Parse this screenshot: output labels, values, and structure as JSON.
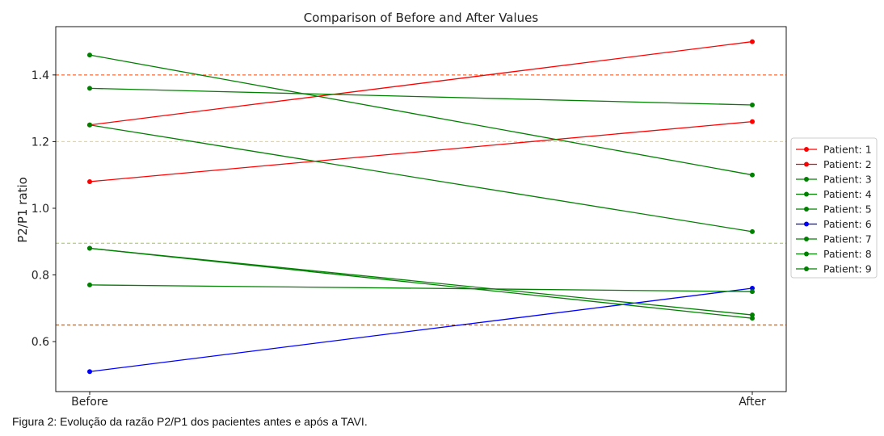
{
  "chart_data": {
    "type": "line",
    "title": "Comparison of Before and After Values",
    "xlabel": "",
    "ylabel": "P2/P1 ratio",
    "categories": [
      "Before",
      "After"
    ],
    "ylim": [
      0.45,
      1.545
    ],
    "yticks": [
      "0.6",
      "0.8",
      "1.0",
      "1.2",
      "1.4"
    ],
    "grid": false,
    "legend_position": "right",
    "series": [
      {
        "name": "Patient: 1",
        "values": [
          1.25,
          1.5
        ],
        "color": "#ff0000"
      },
      {
        "name": "Patient: 2",
        "values": [
          1.08,
          1.26
        ],
        "color": "#ff0000"
      },
      {
        "name": "Patient: 3",
        "values": [
          1.46,
          1.1
        ],
        "color": "#008000"
      },
      {
        "name": "Patient: 4",
        "values": [
          1.36,
          1.31
        ],
        "color": "#008000"
      },
      {
        "name": "Patient: 5",
        "values": [
          1.25,
          0.93
        ],
        "color": "#008000"
      },
      {
        "name": "Patient: 6",
        "values": [
          0.51,
          0.76
        ],
        "color": "#0000ff"
      },
      {
        "name": "Patient: 7",
        "values": [
          0.88,
          0.68
        ],
        "color": "#008000"
      },
      {
        "name": "Patient: 8",
        "values": [
          0.77,
          0.75
        ],
        "color": "#008000"
      },
      {
        "name": "Patient: 9",
        "values": [
          0.88,
          0.67
        ],
        "color": "#008000"
      }
    ],
    "reference_lines": [
      {
        "y": 1.4,
        "color": "#ff4500"
      },
      {
        "y": 1.2,
        "color": "#ffd700"
      },
      {
        "y": 0.895,
        "color": "#9acd32"
      },
      {
        "y": 0.65,
        "color": "#a0522d"
      }
    ]
  },
  "caption": "Figura 2: Evolução da razão P2/P1 dos pacientes antes e após a TAVI."
}
